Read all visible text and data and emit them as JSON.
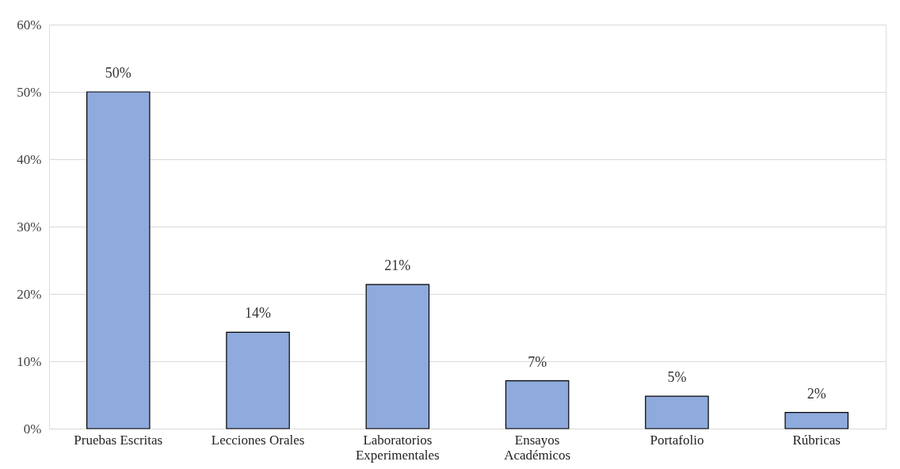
{
  "chart_data": {
    "type": "bar",
    "categories": [
      "Pruebas Escritas",
      "Lecciones Orales",
      "Laboratorios\nExperimentales",
      "Ensayos\nAcadémicos",
      "Portafolio",
      "Rúbricas"
    ],
    "values": [
      50,
      14.3,
      21.4,
      7.1,
      4.8,
      2.4
    ],
    "value_labels": [
      "50%",
      "14%",
      "21%",
      "7%",
      "5%",
      "2%"
    ],
    "color": "#8faadc",
    "ylim": [
      0,
      60
    ],
    "yticks": [
      {
        "value": 0,
        "label": "0%"
      },
      {
        "value": 10,
        "label": "10%"
      },
      {
        "value": 20,
        "label": "20%"
      },
      {
        "value": 30,
        "label": "30%"
      },
      {
        "value": 40,
        "label": "40%"
      },
      {
        "value": 50,
        "label": "50%"
      },
      {
        "value": 60,
        "label": "60%"
      }
    ],
    "grid": "y"
  }
}
